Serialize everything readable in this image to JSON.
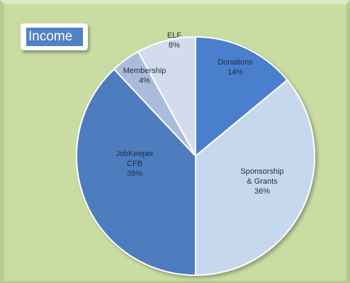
{
  "chart_data": {
    "type": "pie",
    "title": "Income",
    "slices": [
      {
        "label_lines": [
          "Donations",
          "14%"
        ],
        "value": 14,
        "color": "#4a7fcd"
      },
      {
        "label_lines": [
          "Sponsorship",
          "& Grants",
          "36%"
        ],
        "value": 36,
        "color": "#c6d8ee"
      },
      {
        "label_lines": [
          "JobKeeper",
          "CFB",
          "38%"
        ],
        "value": 38,
        "color": "#4d7cbf"
      },
      {
        "label_lines": [
          "Membership",
          "4%"
        ],
        "value": 4,
        "color": "#aabcd9"
      },
      {
        "label_lines": [
          "ELF",
          "8%"
        ],
        "value": 8,
        "color": "#d3dcec"
      }
    ],
    "legend": "none",
    "data_labels": "inside"
  }
}
